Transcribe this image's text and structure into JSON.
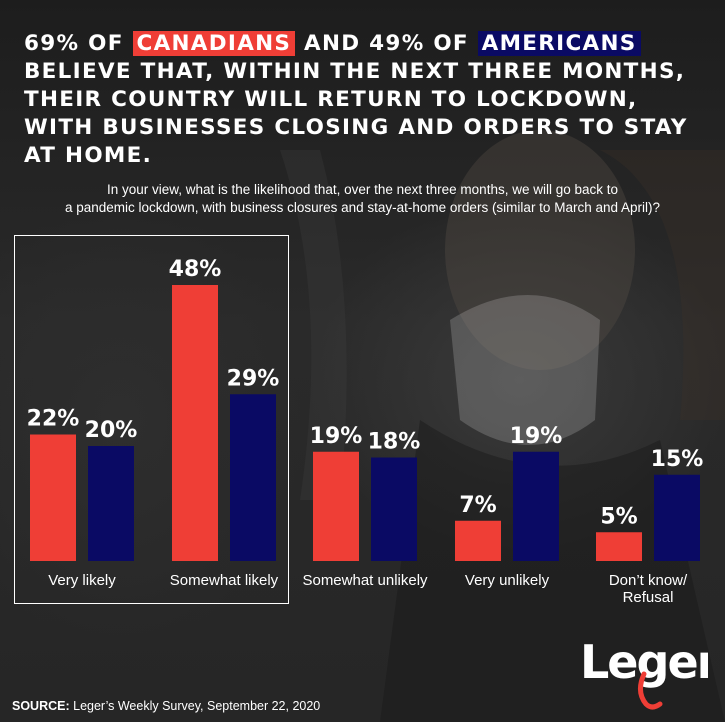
{
  "headline": {
    "part1": "69% of ",
    "canadians": "Canadians",
    "part2": " and 49% of ",
    "americans": "Americans",
    "part3": " believe that, within the next three months, their country will return to lockdown, with businesses closing and orders to stay at home."
  },
  "question": {
    "line1": "In your view, what is the likelihood that, over the next three months, we will go back to",
    "line2": "a pandemic lockdown, with business closures and stay-at-home orders (similar to March and April)?"
  },
  "colors": {
    "canada": "#ef3e36",
    "usa": "#0a0a64",
    "text": "#ffffff"
  },
  "chart_data": {
    "type": "bar",
    "categories": [
      "Very likely",
      "Somewhat likely",
      "Somewhat unlikely",
      "Very unlikely",
      "Don’t know/\nRefusal"
    ],
    "series": [
      {
        "values": [
          22,
          48,
          19,
          7,
          5
        ],
        "labels": [
          "22%",
          "48%",
          "19%",
          "7%",
          "5%"
        ],
        "color": "#ef3e36"
      },
      {
        "values": [
          20,
          29,
          18,
          19,
          15
        ],
        "labels": [
          "20%",
          "29%",
          "18%",
          "19%",
          "15%"
        ],
        "color": "#0a0a64"
      }
    ],
    "ylim": [
      0,
      48
    ],
    "highlight_categories": [
      "Very likely",
      "Somewhat likely"
    ]
  },
  "source": {
    "label": "SOURCE:",
    "text": " Leger’s Weekly Survey, September 22, 2020"
  },
  "logo": {
    "text": "Leger"
  }
}
